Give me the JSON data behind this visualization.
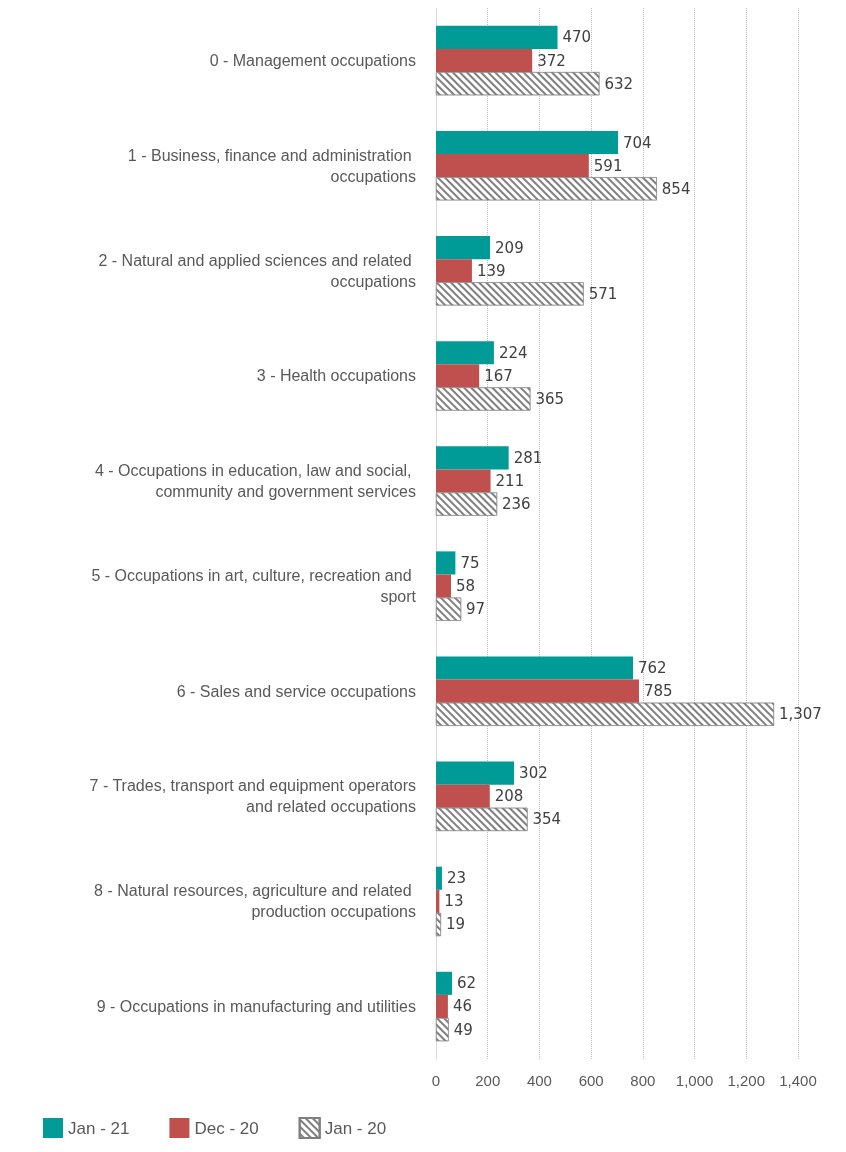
{
  "chart_data": {
    "type": "bar",
    "orientation": "horizontal",
    "categories": [
      "0 - Management occupations",
      "1 - Business, finance and administration occupations",
      "2 - Natural and applied sciences and related occupations",
      "3 - Health occupations",
      "4 - Occupations in education, law and social, community and government services",
      "5 - Occupations in art, culture, recreation and sport",
      "6 - Sales and service occupations",
      "7 - Trades, transport and equipment operators and related occupations",
      "8 - Natural resources, agriculture and related production occupations",
      "9 - Occupations in manufacturing and utilities"
    ],
    "series": [
      {
        "name": "Jan - 21",
        "color": "#009b96",
        "values": [
          470,
          704,
          209,
          224,
          281,
          75,
          762,
          302,
          23,
          62
        ],
        "value_labels": [
          "470",
          "704",
          "209",
          "224",
          "281",
          "75",
          "762",
          "302",
          "23",
          "62"
        ]
      },
      {
        "name": "Dec - 20",
        "color": "#c0504d",
        "values": [
          372,
          591,
          139,
          167,
          211,
          58,
          785,
          208,
          13,
          46
        ],
        "value_labels": [
          "372",
          "591",
          "139",
          "167",
          "211",
          "58",
          "785",
          "208",
          "13",
          "46"
        ]
      },
      {
        "name": "Jan - 20",
        "color": "#7f7f7f",
        "values": [
          632,
          854,
          571,
          365,
          236,
          97,
          1307,
          354,
          19,
          49
        ],
        "value_labels": [
          "632",
          "854",
          "571",
          "365",
          "236",
          "97",
          "1,307",
          "354",
          "19",
          "49"
        ]
      }
    ],
    "xlim": [
      0,
      1400
    ],
    "xticks": [
      0,
      200,
      400,
      600,
      800,
      {
        "value": 1000,
        "label": "1,000"
      },
      {
        "value": 1200,
        "label": "1,200"
      },
      {
        "value": 1400,
        "label": "1,400"
      }
    ],
    "grid": "x",
    "legend": "bottom left"
  }
}
